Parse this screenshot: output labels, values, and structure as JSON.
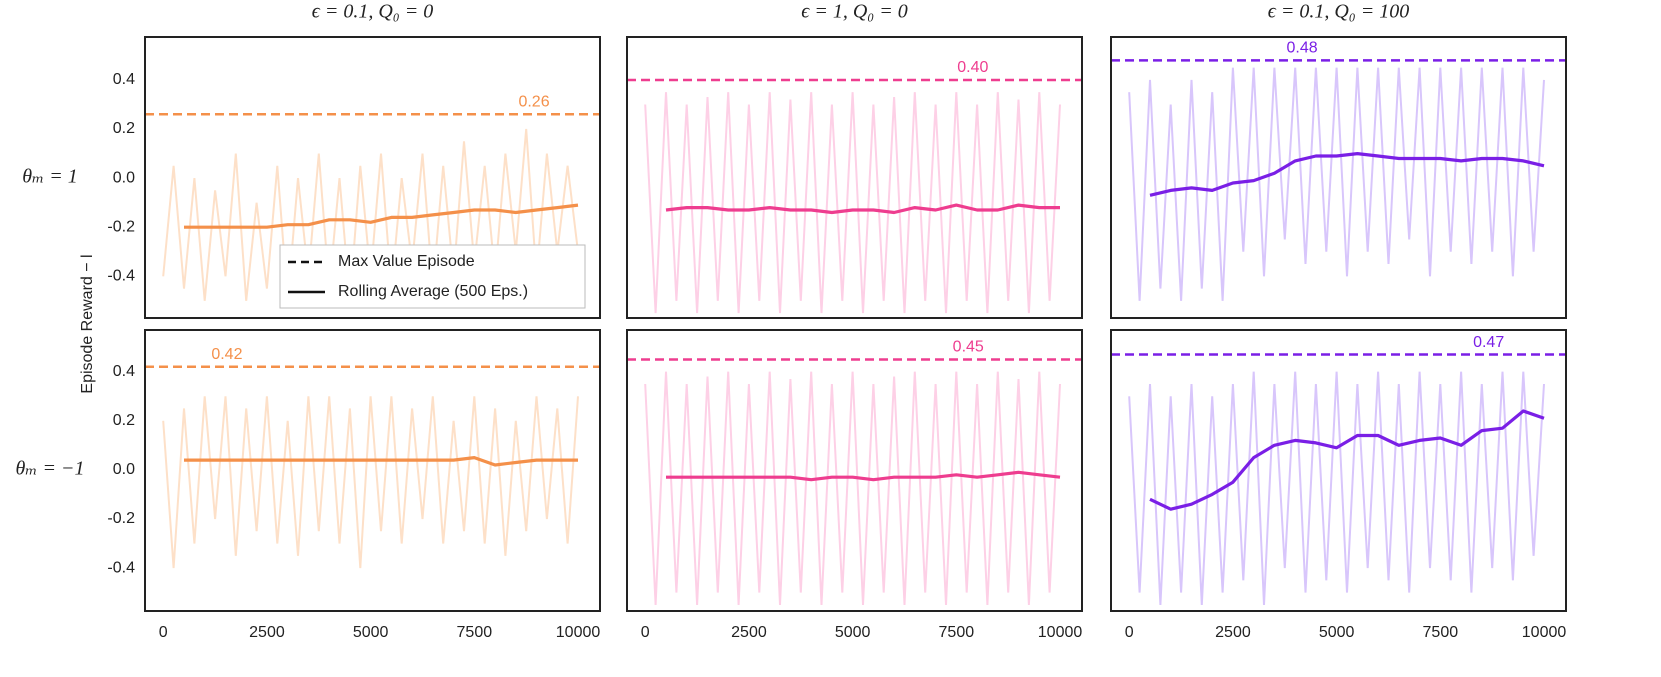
{
  "figure": {
    "column_titles": [
      "ϵ = 0.1, Q₀ = 0",
      "ϵ = 1, Q₀ = 0",
      "ϵ = 0.1, Q₀ = 100"
    ],
    "row_labels": [
      "θₘ = 1",
      "θₘ = −1"
    ],
    "ylabel": "Episode Reward − l",
    "legend": [
      {
        "label": "Max Value Episode",
        "style": "dashed"
      },
      {
        "label": "Rolling Average (500 Eps.)",
        "style": "solid"
      }
    ]
  },
  "chart_data": [
    {
      "type": "line",
      "xlim": [
        -440,
        10530
      ],
      "ylim": [
        -0.57,
        0.575
      ],
      "yticks": [
        -0.4,
        -0.2,
        {
          "value": 0,
          "label": "0.0"
        },
        0.2,
        0.4
      ],
      "max_line": {
        "value": 0.26,
        "label": "0.26"
      },
      "raw": {
        "color": "#fde0c8",
        "x": [
          0,
          250,
          500,
          750,
          1000,
          1250,
          1500,
          1750,
          2000,
          2250,
          2500,
          2750,
          3000,
          3250,
          3500,
          3750,
          4000,
          4250,
          4500,
          4750,
          5000,
          5250,
          5500,
          5750,
          6000,
          6250,
          6500,
          6750,
          7000,
          7250,
          7500,
          7750,
          8000,
          8250,
          8500,
          8750,
          9000,
          9250,
          9500,
          9750,
          10000
        ],
        "values": [
          -0.4,
          0.05,
          -0.45,
          0.0,
          -0.5,
          -0.05,
          -0.4,
          0.1,
          -0.5,
          -0.1,
          -0.45,
          0.05,
          -0.5,
          0.0,
          -0.4,
          0.1,
          -0.45,
          0.0,
          -0.5,
          0.05,
          -0.4,
          0.1,
          -0.45,
          0.0,
          -0.35,
          0.1,
          -0.45,
          0.05,
          -0.4,
          0.15,
          -0.35,
          0.05,
          -0.4,
          0.1,
          -0.3,
          0.2,
          -0.4,
          0.1,
          -0.3,
          0.05,
          -0.3
        ]
      },
      "rolling": {
        "color": "#f4904a",
        "x": [
          500,
          1000,
          1500,
          2000,
          2500,
          3000,
          3500,
          4000,
          4500,
          5000,
          5500,
          6000,
          6500,
          7000,
          7500,
          8000,
          8500,
          9000,
          9500,
          10000
        ],
        "values": [
          -0.2,
          -0.2,
          -0.2,
          -0.2,
          -0.2,
          -0.19,
          -0.19,
          -0.17,
          -0.17,
          -0.18,
          -0.16,
          -0.16,
          -0.15,
          -0.14,
          -0.13,
          -0.13,
          -0.14,
          -0.13,
          -0.12,
          -0.11
        ]
      }
    },
    {
      "type": "line",
      "xlim": [
        -440,
        10530
      ],
      "ylim": [
        -0.57,
        0.575
      ],
      "max_line": {
        "value": 0.4,
        "label": "0.40"
      },
      "raw": {
        "color": "#fdd0e6",
        "x": [
          0,
          250,
          500,
          750,
          1000,
          1250,
          1500,
          1750,
          2000,
          2250,
          2500,
          2750,
          3000,
          3250,
          3500,
          3750,
          4000,
          4250,
          4500,
          4750,
          5000,
          5250,
          5500,
          5750,
          6000,
          6250,
          6500,
          6750,
          7000,
          7250,
          7500,
          7750,
          8000,
          8250,
          8500,
          8750,
          9000,
          9250,
          9500,
          9750,
          10000
        ],
        "values": [
          0.3,
          -0.55,
          0.35,
          -0.5,
          0.3,
          -0.55,
          0.33,
          -0.5,
          0.35,
          -0.55,
          0.3,
          -0.5,
          0.35,
          -0.55,
          0.32,
          -0.5,
          0.35,
          -0.55,
          0.3,
          -0.5,
          0.35,
          -0.55,
          0.3,
          -0.5,
          0.33,
          -0.55,
          0.35,
          -0.5,
          0.3,
          -0.55,
          0.35,
          -0.5,
          0.3,
          -0.55,
          0.35,
          -0.5,
          0.32,
          -0.55,
          0.35,
          -0.5,
          0.3
        ]
      },
      "rolling": {
        "color": "#ee3d8f",
        "x": [
          500,
          1000,
          1500,
          2000,
          2500,
          3000,
          3500,
          4000,
          4500,
          5000,
          5500,
          6000,
          6500,
          7000,
          7500,
          8000,
          8500,
          9000,
          9500,
          10000
        ],
        "values": [
          -0.13,
          -0.12,
          -0.12,
          -0.13,
          -0.13,
          -0.12,
          -0.13,
          -0.13,
          -0.14,
          -0.13,
          -0.13,
          -0.14,
          -0.12,
          -0.13,
          -0.11,
          -0.13,
          -0.13,
          -0.11,
          -0.12,
          -0.12
        ]
      }
    },
    {
      "type": "line",
      "xlim": [
        -440,
        10530
      ],
      "ylim": [
        -0.57,
        0.575
      ],
      "max_line": {
        "value": 0.48,
        "label": "0.48"
      },
      "raw": {
        "color": "#d8c6fb",
        "x": [
          0,
          250,
          500,
          750,
          1000,
          1250,
          1500,
          1750,
          2000,
          2250,
          2500,
          2750,
          3000,
          3250,
          3500,
          3750,
          4000,
          4250,
          4500,
          4750,
          5000,
          5250,
          5500,
          5750,
          6000,
          6250,
          6500,
          6750,
          7000,
          7250,
          7500,
          7750,
          8000,
          8250,
          8500,
          8750,
          9000,
          9250,
          9500,
          9750,
          10000
        ],
        "values": [
          0.35,
          -0.5,
          0.4,
          -0.45,
          0.3,
          -0.5,
          0.4,
          -0.45,
          0.35,
          -0.5,
          0.45,
          -0.3,
          0.45,
          -0.4,
          0.45,
          -0.25,
          0.45,
          -0.35,
          0.45,
          -0.3,
          0.45,
          -0.4,
          0.45,
          -0.3,
          0.45,
          -0.35,
          0.45,
          -0.25,
          0.45,
          -0.4,
          0.45,
          -0.3,
          0.45,
          -0.35,
          0.45,
          -0.3,
          0.45,
          -0.4,
          0.45,
          -0.3,
          0.4
        ]
      },
      "rolling": {
        "color": "#7a1fe6",
        "x": [
          500,
          1000,
          1500,
          2000,
          2500,
          3000,
          3500,
          4000,
          4500,
          5000,
          5500,
          6000,
          6500,
          7000,
          7500,
          8000,
          8500,
          9000,
          9500,
          10000
        ],
        "values": [
          -0.07,
          -0.05,
          -0.04,
          -0.05,
          -0.02,
          -0.01,
          0.02,
          0.07,
          0.09,
          0.09,
          0.1,
          0.09,
          0.08,
          0.08,
          0.08,
          0.07,
          0.08,
          0.08,
          0.07,
          0.05
        ]
      }
    },
    {
      "type": "line",
      "xlim": [
        -440,
        10530
      ],
      "ylim": [
        -0.575,
        0.57
      ],
      "xticks": [
        0,
        2500,
        5000,
        7500,
        10000
      ],
      "yticks": [
        -0.4,
        -0.2,
        {
          "value": 0,
          "label": "0.0"
        },
        0.2,
        0.4
      ],
      "max_line": {
        "value": 0.42,
        "label": "0.42"
      },
      "raw": {
        "color": "#fde0c8",
        "x": [
          0,
          250,
          500,
          750,
          1000,
          1250,
          1500,
          1750,
          2000,
          2250,
          2500,
          2750,
          3000,
          3250,
          3500,
          3750,
          4000,
          4250,
          4500,
          4750,
          5000,
          5250,
          5500,
          5750,
          6000,
          6250,
          6500,
          6750,
          7000,
          7250,
          7500,
          7750,
          8000,
          8250,
          8500,
          8750,
          9000,
          9250,
          9500,
          9750,
          10000
        ],
        "values": [
          0.2,
          -0.4,
          0.25,
          -0.3,
          0.3,
          -0.2,
          0.3,
          -0.35,
          0.25,
          -0.25,
          0.3,
          -0.3,
          0.2,
          -0.35,
          0.3,
          -0.25,
          0.3,
          -0.3,
          0.25,
          -0.4,
          0.3,
          -0.25,
          0.3,
          -0.3,
          0.25,
          -0.2,
          0.3,
          -0.3,
          0.2,
          -0.25,
          0.3,
          -0.3,
          0.25,
          -0.35,
          0.2,
          -0.25,
          0.3,
          -0.2,
          0.25,
          -0.3,
          0.3
        ]
      },
      "rolling": {
        "color": "#f4904a",
        "x": [
          500,
          1000,
          1500,
          2000,
          2500,
          3000,
          3500,
          4000,
          4500,
          5000,
          5500,
          6000,
          6500,
          7000,
          7500,
          8000,
          8500,
          9000,
          9500,
          10000
        ],
        "values": [
          0.04,
          0.04,
          0.04,
          0.04,
          0.04,
          0.04,
          0.04,
          0.04,
          0.04,
          0.04,
          0.04,
          0.04,
          0.04,
          0.04,
          0.05,
          0.02,
          0.03,
          0.04,
          0.04,
          0.04
        ]
      }
    },
    {
      "type": "line",
      "xlim": [
        -440,
        10530
      ],
      "ylim": [
        -0.575,
        0.57
      ],
      "xticks": [
        0,
        2500,
        5000,
        7500,
        10000
      ],
      "max_line": {
        "value": 0.45,
        "label": "0.45"
      },
      "raw": {
        "color": "#fdd0e6",
        "x": [
          0,
          250,
          500,
          750,
          1000,
          1250,
          1500,
          1750,
          2000,
          2250,
          2500,
          2750,
          3000,
          3250,
          3500,
          3750,
          4000,
          4250,
          4500,
          4750,
          5000,
          5250,
          5500,
          5750,
          6000,
          6250,
          6500,
          6750,
          7000,
          7250,
          7500,
          7750,
          8000,
          8250,
          8500,
          8750,
          9000,
          9250,
          9500,
          9750,
          10000
        ],
        "values": [
          0.35,
          -0.55,
          0.4,
          -0.5,
          0.35,
          -0.55,
          0.38,
          -0.5,
          0.4,
          -0.55,
          0.35,
          -0.5,
          0.4,
          -0.55,
          0.37,
          -0.5,
          0.4,
          -0.55,
          0.35,
          -0.5,
          0.4,
          -0.55,
          0.35,
          -0.5,
          0.38,
          -0.55,
          0.4,
          -0.5,
          0.35,
          -0.55,
          0.4,
          -0.5,
          0.35,
          -0.55,
          0.4,
          -0.5,
          0.37,
          -0.55,
          0.4,
          -0.5,
          0.35
        ]
      },
      "rolling": {
        "color": "#ee3d8f",
        "x": [
          500,
          1000,
          1500,
          2000,
          2500,
          3000,
          3500,
          4000,
          4500,
          5000,
          5500,
          6000,
          6500,
          7000,
          7500,
          8000,
          8500,
          9000,
          9500,
          10000
        ],
        "values": [
          -0.03,
          -0.03,
          -0.03,
          -0.03,
          -0.03,
          -0.03,
          -0.03,
          -0.04,
          -0.03,
          -0.03,
          -0.04,
          -0.03,
          -0.03,
          -0.03,
          -0.02,
          -0.03,
          -0.02,
          -0.01,
          -0.02,
          -0.03
        ]
      }
    },
    {
      "type": "line",
      "xlim": [
        -440,
        10530
      ],
      "ylim": [
        -0.575,
        0.57
      ],
      "xticks": [
        0,
        2500,
        5000,
        7500,
        10000
      ],
      "max_line": {
        "value": 0.47,
        "label": "0.47"
      },
      "raw": {
        "color": "#d8c6fb",
        "x": [
          0,
          250,
          500,
          750,
          1000,
          1250,
          1500,
          1750,
          2000,
          2250,
          2500,
          2750,
          3000,
          3250,
          3500,
          3750,
          4000,
          4250,
          4500,
          4750,
          5000,
          5250,
          5500,
          5750,
          6000,
          6250,
          6500,
          6750,
          7000,
          7250,
          7500,
          7750,
          8000,
          8250,
          8500,
          8750,
          9000,
          9250,
          9500,
          9750,
          10000
        ],
        "values": [
          0.3,
          -0.5,
          0.35,
          -0.55,
          0.3,
          -0.5,
          0.35,
          -0.55,
          0.3,
          -0.5,
          0.35,
          -0.45,
          0.4,
          -0.55,
          0.35,
          -0.4,
          0.4,
          -0.5,
          0.35,
          -0.45,
          0.4,
          -0.5,
          0.35,
          -0.4,
          0.4,
          -0.45,
          0.35,
          -0.5,
          0.4,
          -0.4,
          0.35,
          -0.45,
          0.4,
          -0.5,
          0.35,
          -0.4,
          0.4,
          -0.45,
          0.4,
          -0.35,
          0.35
        ]
      },
      "rolling": {
        "color": "#7a1fe6",
        "x": [
          500,
          1000,
          1500,
          2000,
          2500,
          3000,
          3500,
          4000,
          4500,
          5000,
          5500,
          6000,
          6500,
          7000,
          7500,
          8000,
          8500,
          9000,
          9500,
          10000
        ],
        "values": [
          -0.12,
          -0.16,
          -0.14,
          -0.1,
          -0.05,
          0.05,
          0.1,
          0.12,
          0.11,
          0.09,
          0.14,
          0.14,
          0.1,
          0.12,
          0.13,
          0.1,
          0.16,
          0.17,
          0.24,
          0.21
        ]
      }
    }
  ]
}
